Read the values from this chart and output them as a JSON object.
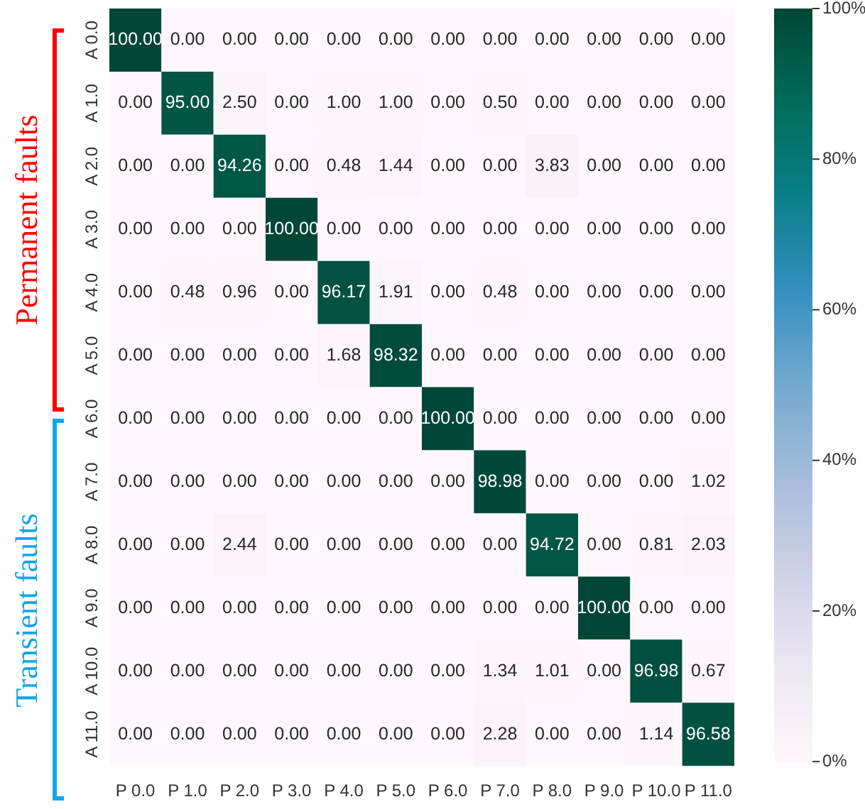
{
  "chart_data": {
    "type": "heatmap",
    "categories": [
      "P 0.0",
      "P 1.0",
      "P 2.0",
      "P 3.0",
      "P 4.0",
      "P 5.0",
      "P 6.0",
      "P 7.0",
      "P 8.0",
      "P 9.0",
      "P 10.0",
      "P 11.0"
    ],
    "y_categories": [
      "A 0.0",
      "A 1.0",
      "A 2.0",
      "A 3.0",
      "A 4.0",
      "A 5.0",
      "A 6.0",
      "A 7.0",
      "A 8.0",
      "A 9.0",
      "A 10.0",
      "A 11.0"
    ],
    "cells": [
      [
        100,
        0,
        0,
        0,
        0,
        0,
        0,
        0,
        0,
        0,
        0,
        0
      ],
      [
        0,
        95,
        2.5,
        0,
        1,
        1,
        0,
        0.5,
        0,
        0,
        0,
        0
      ],
      [
        0,
        0,
        94.26,
        0,
        0.48,
        1.44,
        0,
        0,
        3.83,
        0,
        0,
        0
      ],
      [
        0,
        0,
        0,
        100,
        0,
        0,
        0,
        0,
        0,
        0,
        0,
        0
      ],
      [
        0,
        0.48,
        0.96,
        0,
        96.17,
        1.91,
        0,
        0.48,
        0,
        0,
        0,
        0
      ],
      [
        0,
        0,
        0,
        0,
        1.68,
        98.32,
        0,
        0,
        0,
        0,
        0,
        0
      ],
      [
        0,
        0,
        0,
        0,
        0,
        0,
        100,
        0,
        0,
        0,
        0,
        0
      ],
      [
        0,
        0,
        0,
        0,
        0,
        0,
        0,
        98.98,
        0,
        0,
        0,
        1.02
      ],
      [
        0,
        0,
        2.44,
        0,
        0,
        0,
        0,
        0,
        94.72,
        0,
        0.81,
        2.03
      ],
      [
        0,
        0,
        0,
        0,
        0,
        0,
        0,
        0,
        0,
        100,
        0,
        0
      ],
      [
        0,
        0,
        0,
        0,
        0,
        0,
        0,
        1.34,
        1.01,
        0,
        96.98,
        0.67
      ],
      [
        0,
        0,
        0,
        0,
        0,
        0,
        0,
        2.28,
        0,
        0,
        1.14,
        96.58
      ]
    ],
    "cell_labels": [
      [
        "100.00",
        "0.00",
        "0.00",
        "0.00",
        "0.00",
        "0.00",
        "0.00",
        "0.00",
        "0.00",
        "0.00",
        "0.00",
        "0.00"
      ],
      [
        "0.00",
        "95.00",
        "2.50",
        "0.00",
        "1.00",
        "1.00",
        "0.00",
        "0.50",
        "0.00",
        "0.00",
        "0.00",
        "0.00"
      ],
      [
        "0.00",
        "0.00",
        "94.26",
        "0.00",
        "0.48",
        "1.44",
        "0.00",
        "0.00",
        "3.83",
        "0.00",
        "0.00",
        "0.00"
      ],
      [
        "0.00",
        "0.00",
        "0.00",
        "100.00",
        "0.00",
        "0.00",
        "0.00",
        "0.00",
        "0.00",
        "0.00",
        "0.00",
        "0.00"
      ],
      [
        "0.00",
        "0.48",
        "0.96",
        "0.00",
        "96.17",
        "1.91",
        "0.00",
        "0.48",
        "0.00",
        "0.00",
        "0.00",
        "0.00"
      ],
      [
        "0.00",
        "0.00",
        "0.00",
        "0.00",
        "1.68",
        "98.32",
        "0.00",
        "0.00",
        "0.00",
        "0.00",
        "0.00",
        "0.00"
      ],
      [
        "0.00",
        "0.00",
        "0.00",
        "0.00",
        "0.00",
        "0.00",
        "100.00",
        "0.00",
        "0.00",
        "0.00",
        "0.00",
        "0.00"
      ],
      [
        "0.00",
        "0.00",
        "0.00",
        "0.00",
        "0.00",
        "0.00",
        "0.00",
        "98.98",
        "0.00",
        "0.00",
        "0.00",
        "1.02"
      ],
      [
        "0.00",
        "0.00",
        "2.44",
        "0.00",
        "0.00",
        "0.00",
        "0.00",
        "0.00",
        "94.72",
        "0.00",
        "0.81",
        "2.03"
      ],
      [
        "0.00",
        "0.00",
        "0.00",
        "0.00",
        "0.00",
        "0.00",
        "0.00",
        "0.00",
        "0.00",
        "100.00",
        "0.00",
        "0.00"
      ],
      [
        "0.00",
        "0.00",
        "0.00",
        "0.00",
        "0.00",
        "0.00",
        "0.00",
        "1.34",
        "1.01",
        "0.00",
        "96.98",
        "0.67"
      ],
      [
        "0.00",
        "0.00",
        "0.00",
        "0.00",
        "0.00",
        "0.00",
        "0.00",
        "2.28",
        "0.00",
        "0.00",
        "1.14",
        "96.58"
      ]
    ],
    "clim": [
      0,
      100
    ],
    "cticks": [
      {
        "value": 0,
        "label": "0%"
      },
      {
        "value": 20,
        "label": "20%"
      },
      {
        "value": 40,
        "label": "40%"
      },
      {
        "value": 60,
        "label": "60%"
      },
      {
        "value": 80,
        "label": "80%"
      },
      {
        "value": 100,
        "label": "100%"
      }
    ],
    "annotations": [
      "Permanent faults",
      "Transient faults"
    ]
  }
}
